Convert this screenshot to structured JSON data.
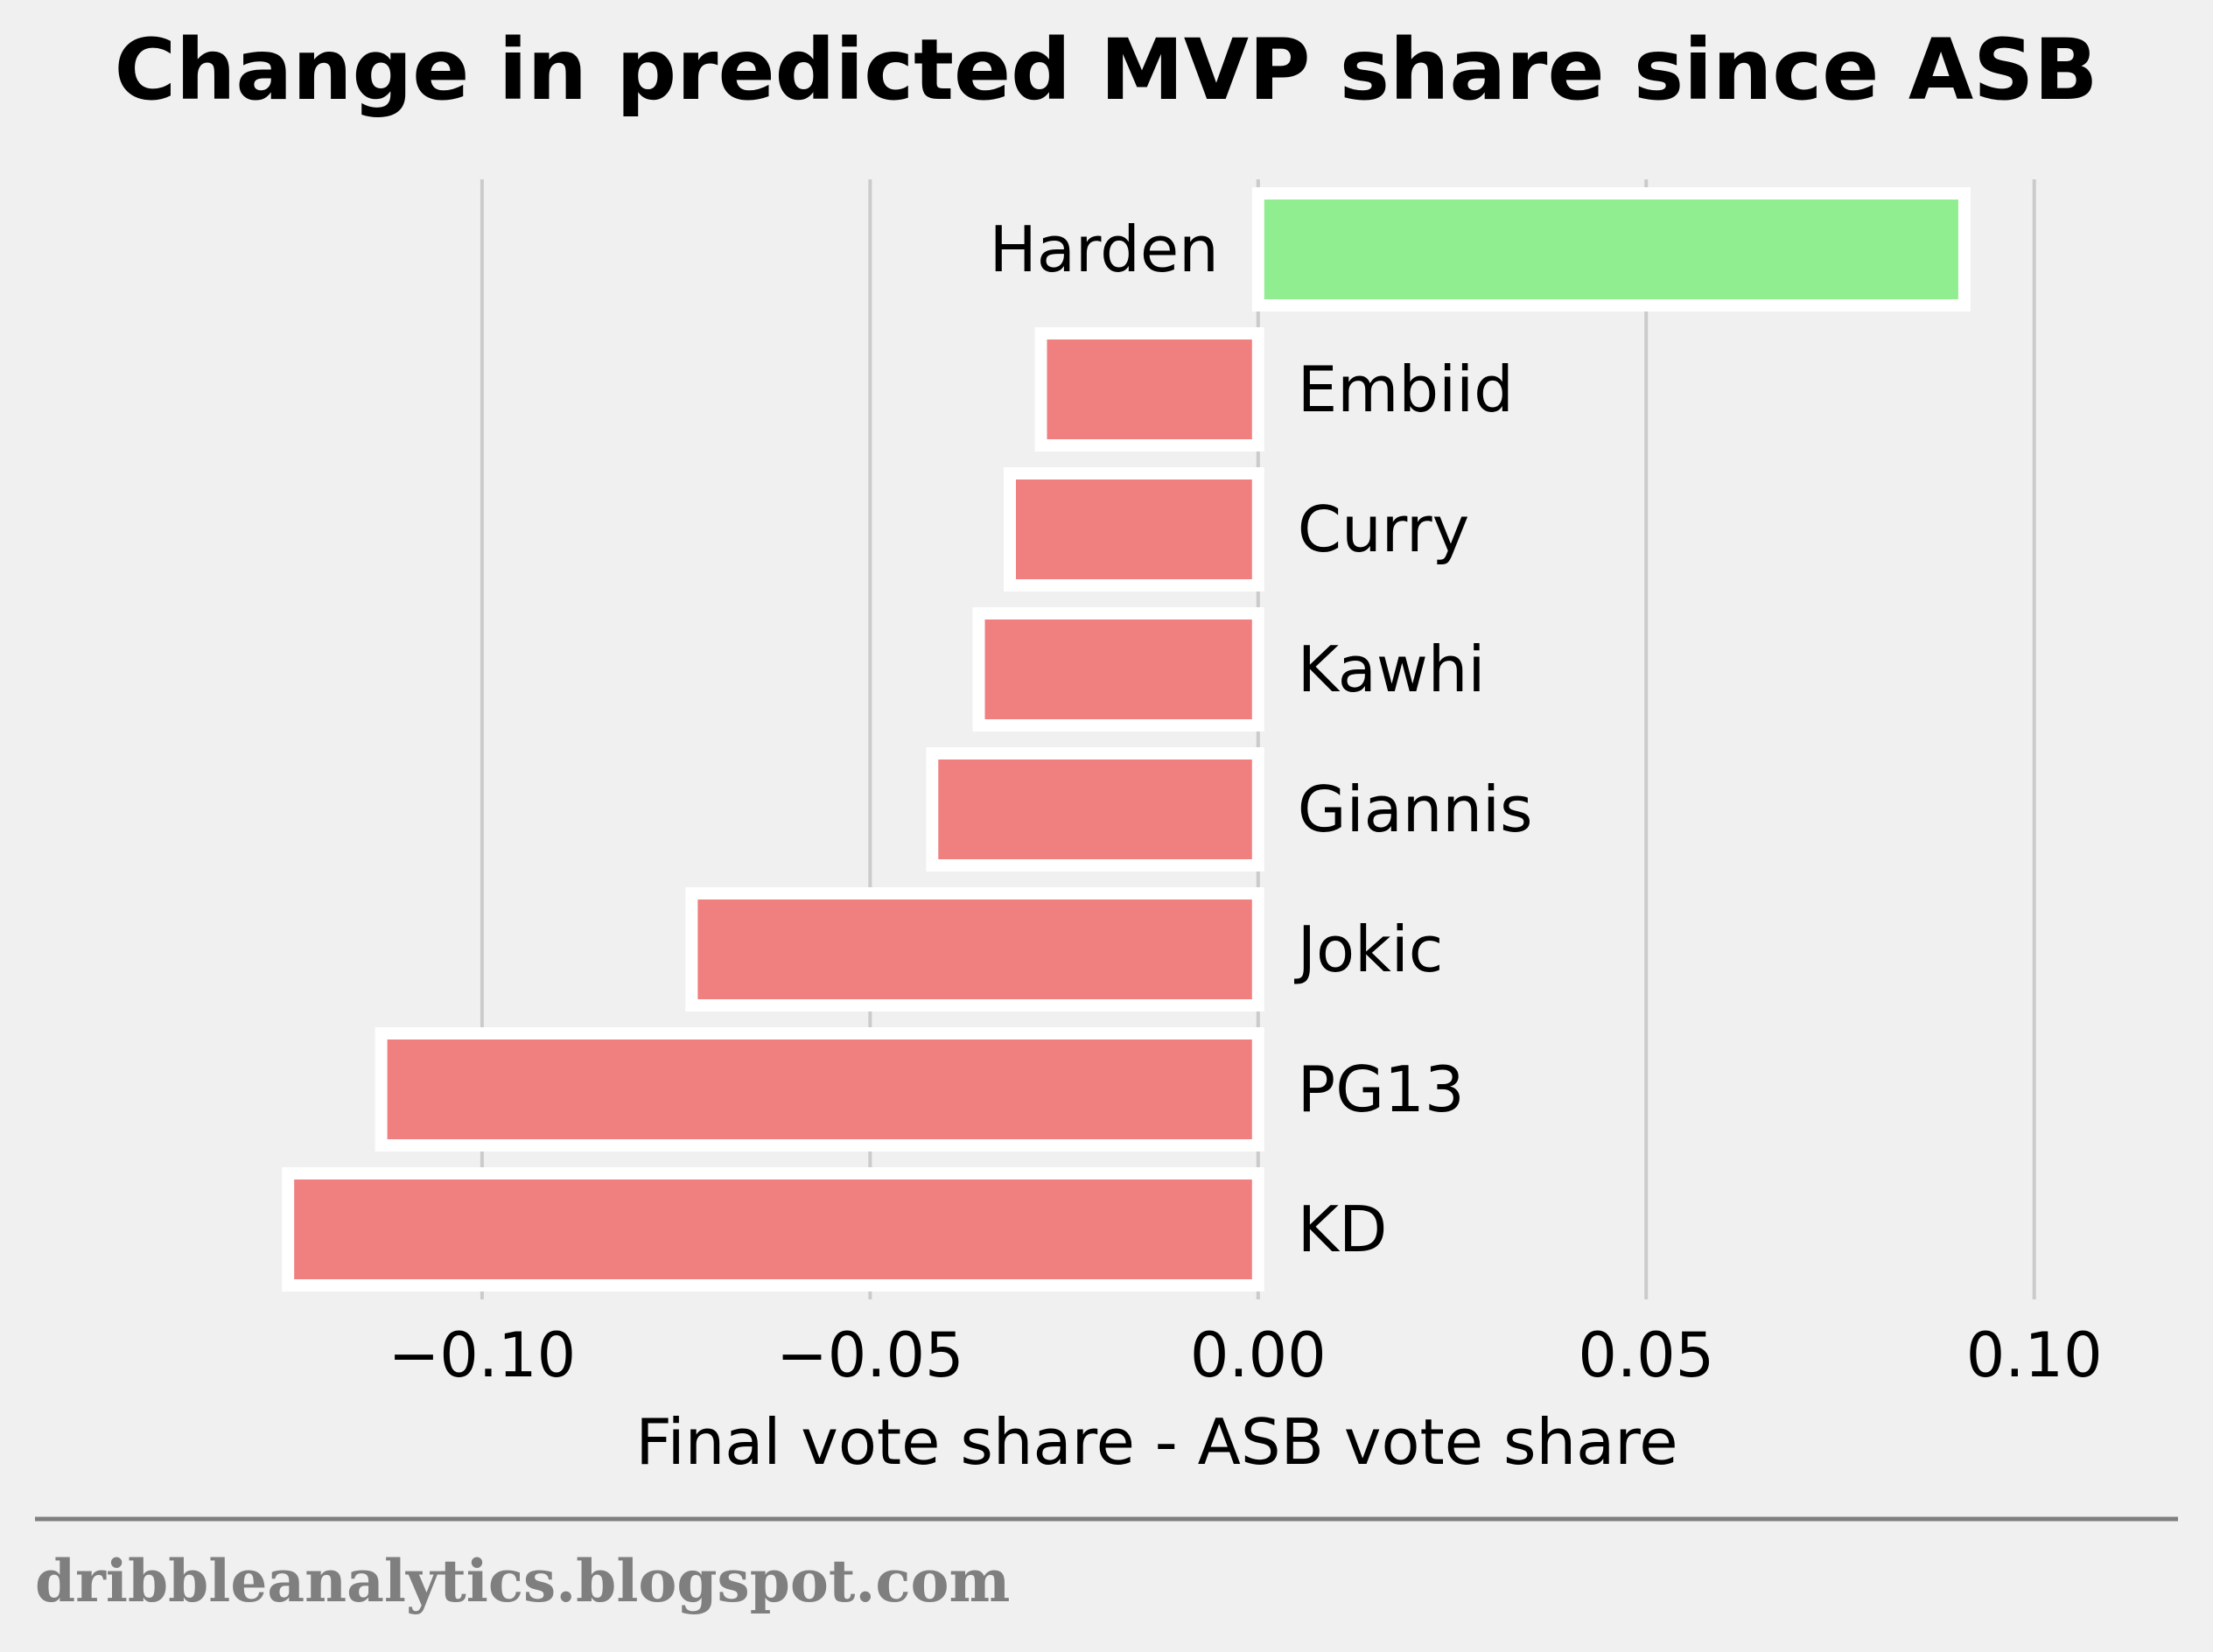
{
  "chart_data": {
    "type": "bar",
    "orientation": "horizontal",
    "title": "Change in predicted MVP share since ASB",
    "xlabel": "Final vote share - ASB vote share",
    "ylabel": "",
    "categories": [
      "Harden",
      "Embiid",
      "Curry",
      "Kawhi",
      "Giannis",
      "Jokic",
      "PG13",
      "KD"
    ],
    "values": [
      0.091,
      -0.028,
      -0.032,
      -0.036,
      -0.042,
      -0.073,
      -0.113,
      -0.125
    ],
    "xlim": [
      -0.139,
      0.113
    ],
    "xticks": [
      -0.1,
      -0.05,
      0.0,
      0.05,
      0.1
    ],
    "xtick_labels": [
      "−0.10",
      "−0.05",
      "0.00",
      "0.05",
      "0.10"
    ],
    "grid": "vertical",
    "colors": {
      "positive": "#90ee90",
      "negative": "#f08080",
      "bar_edge": "#ffffff",
      "grid": "#cbcbcb",
      "background": "#f0f0f0"
    }
  },
  "footer": {
    "source": "dribbleanalytics.blogspot.com"
  }
}
